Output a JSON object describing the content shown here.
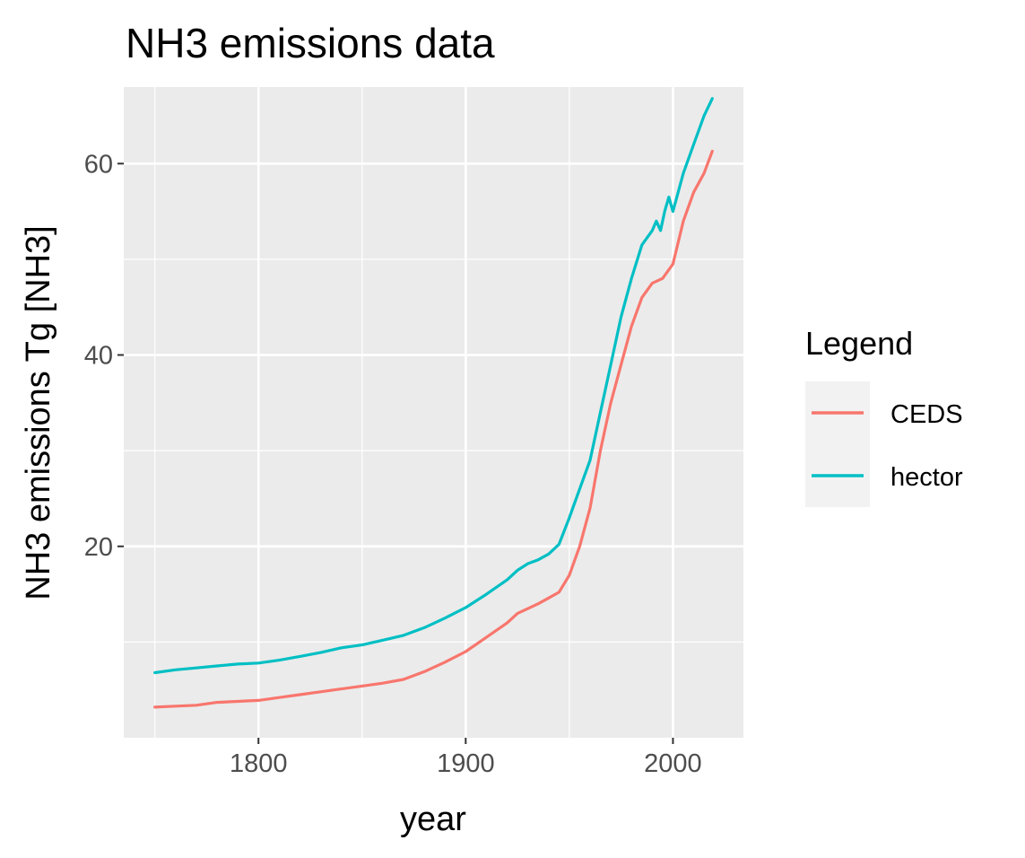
{
  "chart_data": {
    "type": "line",
    "title": "NH3 emissions data",
    "xlabel": "year",
    "ylabel": "NH3 emissions Tg [NH3]",
    "xlim": [
      1735,
      2034
    ],
    "ylim": [
      0,
      68
    ],
    "x_ticks": [
      1800,
      1900,
      2000
    ],
    "x_tick_labels": [
      "1800",
      "1900",
      "2000"
    ],
    "y_ticks": [
      20,
      40,
      60
    ],
    "y_tick_labels": [
      "20",
      "40",
      "60"
    ],
    "grid": true,
    "legend": {
      "title": "Legend",
      "placement": "right"
    },
    "series": [
      {
        "name": "CEDS",
        "color": "#F8766D",
        "x": [
          1750,
          1760,
          1770,
          1780,
          1790,
          1800,
          1810,
          1820,
          1830,
          1840,
          1850,
          1860,
          1870,
          1880,
          1890,
          1900,
          1910,
          1920,
          1925,
          1930,
          1935,
          1940,
          1945,
          1950,
          1955,
          1960,
          1965,
          1970,
          1975,
          1980,
          1985,
          1990,
          1995,
          2000,
          2005,
          2010,
          2015,
          2019
        ],
        "y": [
          3.2,
          3.3,
          3.4,
          3.7,
          3.8,
          3.9,
          4.2,
          4.5,
          4.8,
          5.1,
          5.4,
          5.7,
          6.1,
          6.9,
          7.9,
          9.0,
          10.5,
          12.0,
          13.0,
          13.5,
          14.0,
          14.6,
          15.2,
          17.0,
          20.0,
          24.0,
          30.0,
          35.0,
          39.0,
          43.0,
          46.0,
          47.5,
          48.0,
          49.5,
          54.0,
          57.0,
          59.0,
          61.3
        ]
      },
      {
        "name": "hector",
        "color": "#00BFC4",
        "x": [
          1750,
          1760,
          1770,
          1780,
          1790,
          1800,
          1810,
          1820,
          1830,
          1840,
          1850,
          1860,
          1870,
          1880,
          1890,
          1900,
          1910,
          1920,
          1925,
          1930,
          1935,
          1940,
          1945,
          1950,
          1955,
          1960,
          1965,
          1970,
          1975,
          1980,
          1985,
          1990,
          1992,
          1994,
          1996,
          1998,
          2000,
          2005,
          2010,
          2015,
          2019
        ],
        "y": [
          6.8,
          7.1,
          7.3,
          7.5,
          7.7,
          7.8,
          8.1,
          8.5,
          8.9,
          9.4,
          9.7,
          10.2,
          10.7,
          11.5,
          12.5,
          13.6,
          15.0,
          16.5,
          17.5,
          18.2,
          18.6,
          19.2,
          20.2,
          23.0,
          26.0,
          29.0,
          34.0,
          39.0,
          44.0,
          48.0,
          51.5,
          53.0,
          54.0,
          53.0,
          55.0,
          56.5,
          55.0,
          59.0,
          62.0,
          65.0,
          66.8
        ]
      }
    ]
  }
}
